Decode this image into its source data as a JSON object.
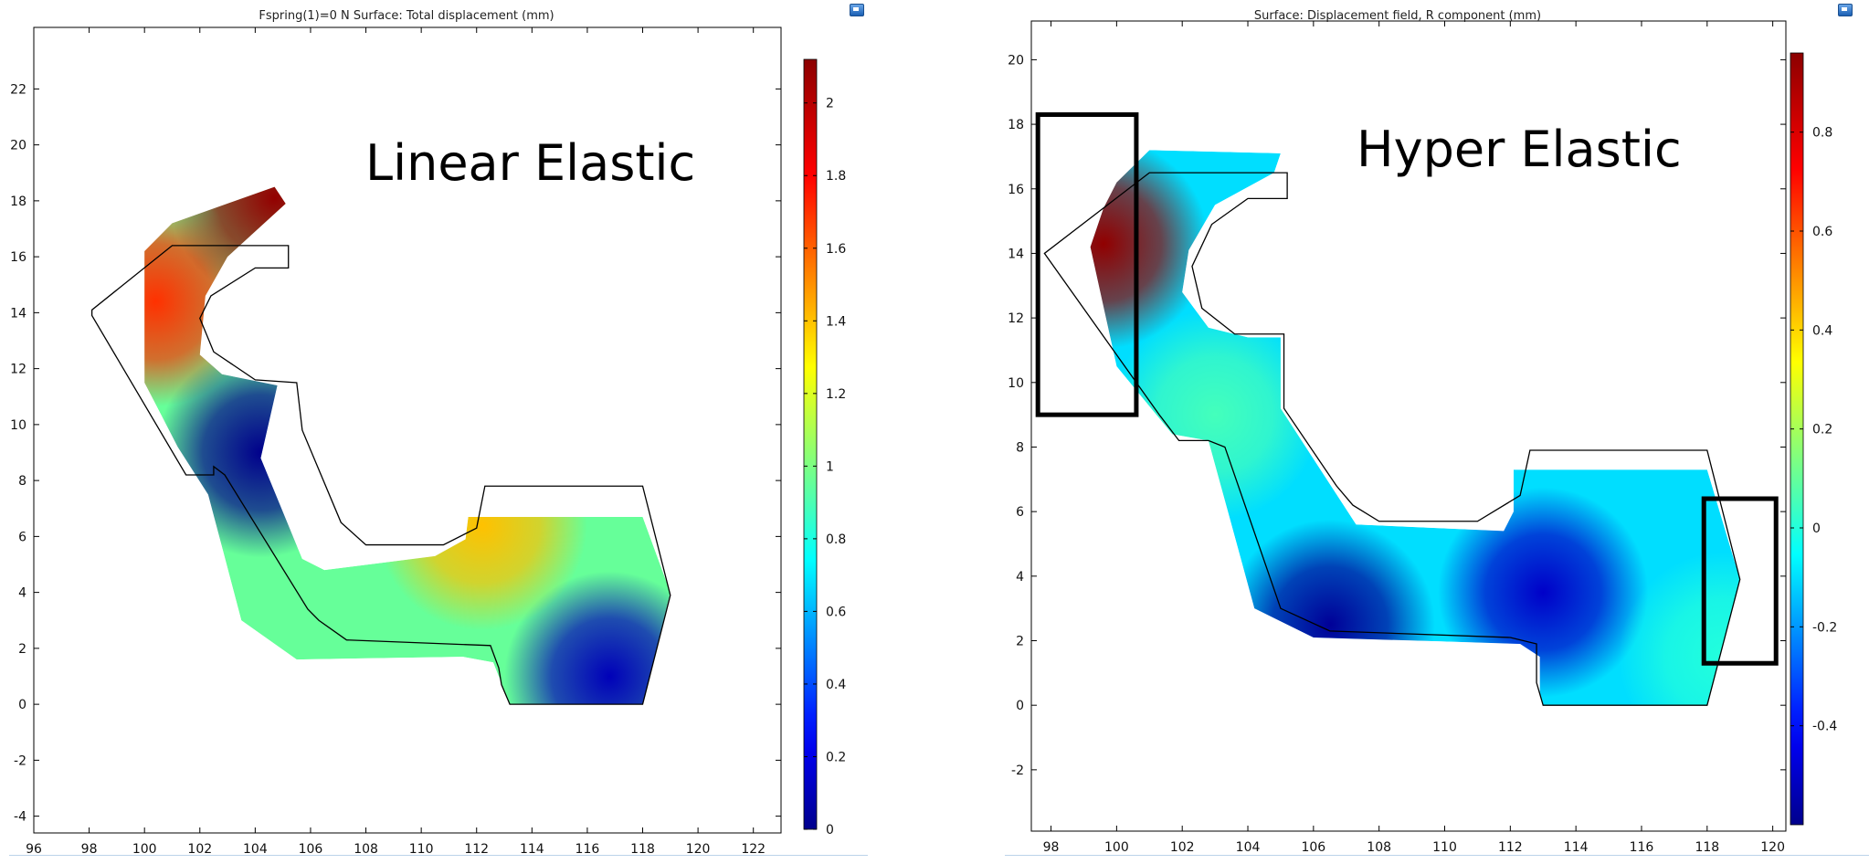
{
  "chart_data": [
    {
      "type": "heatmap",
      "title": "Fspring(1)=0 N   Surface: Total displacement (mm)",
      "annotation": "Linear Elastic",
      "xlim": [
        96,
        123
      ],
      "ylim": [
        -4.6,
        24.2
      ],
      "xticks": [
        "96",
        "98",
        "100",
        "102",
        "104",
        "106",
        "108",
        "110",
        "112",
        "114",
        "116",
        "118",
        "120",
        "122"
      ],
      "yticks": [
        "-4",
        "-2",
        "0",
        "2",
        "4",
        "6",
        "8",
        "10",
        "12",
        "14",
        "16",
        "18",
        "20",
        "22"
      ],
      "colorbar": {
        "range": [
          0,
          2.12
        ],
        "ticks": [
          "0",
          "0.2",
          "0.4",
          "0.6",
          "0.8",
          "1",
          "1.2",
          "1.4",
          "1.6",
          "1.8",
          "2"
        ],
        "colormap": "rainbow"
      },
      "hotspots": [
        {
          "x": 100.4,
          "y": 14.4,
          "value": 1.7
        },
        {
          "x": 104.7,
          "y": 18.1,
          "value": 2.1
        },
        {
          "x": 104.2,
          "y": 9.0,
          "value": 0.0
        },
        {
          "x": 116.8,
          "y": 1.0,
          "value": 0.1
        },
        {
          "x": 112.2,
          "y": 6.4,
          "value": 1.4
        }
      ],
      "deformed_outline": [
        [
          100,
          16.2
        ],
        [
          101,
          17.2
        ],
        [
          104.7,
          18.5
        ],
        [
          105.1,
          17.9
        ],
        [
          103,
          16
        ],
        [
          102.2,
          14.6
        ],
        [
          102,
          12.5
        ],
        [
          102.8,
          11.8
        ],
        [
          104.8,
          11.4
        ],
        [
          104.2,
          8.8
        ],
        [
          105.7,
          5.2
        ],
        [
          106.5,
          4.8
        ],
        [
          110.5,
          5.3
        ],
        [
          111.6,
          5.9
        ],
        [
          111.7,
          6.7
        ],
        [
          118,
          6.7
        ],
        [
          119,
          4
        ],
        [
          118,
          0
        ],
        [
          113.2,
          0
        ],
        [
          112.6,
          1.5
        ],
        [
          111.5,
          1.7
        ],
        [
          105.5,
          1.6
        ],
        [
          103.5,
          3
        ],
        [
          102.3,
          7.5
        ],
        [
          101.2,
          9.2
        ],
        [
          100,
          11.5
        ]
      ],
      "undeformed_outline": [
        [
          101,
          16.4
        ],
        [
          105.2,
          16.4
        ],
        [
          105.2,
          15.6
        ],
        [
          104,
          15.6
        ],
        [
          102.4,
          14.6
        ],
        [
          102,
          13.8
        ],
        [
          102.5,
          12.6
        ],
        [
          104,
          11.6
        ],
        [
          105.5,
          11.5
        ],
        [
          105.7,
          9.8
        ],
        [
          107.1,
          6.5
        ],
        [
          108,
          5.7
        ],
        [
          110.8,
          5.7
        ],
        [
          112,
          6.3
        ],
        [
          112.3,
          7.8
        ],
        [
          118,
          7.8
        ],
        [
          119,
          3.9
        ],
        [
          118,
          0
        ],
        [
          113.2,
          0
        ],
        [
          112.9,
          0.7
        ],
        [
          112.8,
          1.3
        ],
        [
          112.5,
          2.1
        ],
        [
          107.3,
          2.3
        ],
        [
          106.3,
          3
        ],
        [
          105.9,
          3.4
        ],
        [
          102.9,
          8.2
        ],
        [
          102.5,
          8.5
        ],
        [
          102.5,
          8.2
        ],
        [
          101.5,
          8.2
        ],
        [
          98.1,
          13.9
        ],
        [
          98.1,
          14.1
        ]
      ]
    },
    {
      "type": "heatmap",
      "title": "Surface: Displacement field, R component (mm)",
      "annotation": "Hyper Elastic",
      "xlim": [
        97.4,
        120.4
      ],
      "ylim": [
        -3.9,
        21.2
      ],
      "xticks": [
        "98",
        "100",
        "102",
        "104",
        "106",
        "108",
        "110",
        "112",
        "114",
        "116",
        "118",
        "120"
      ],
      "yticks": [
        "-2",
        "0",
        "2",
        "4",
        "6",
        "8",
        "10",
        "12",
        "14",
        "16",
        "18",
        "20"
      ],
      "colorbar": {
        "range": [
          -0.6,
          0.96
        ],
        "ticks": [
          "-0.4",
          "-0.2",
          "0",
          "0.2",
          "0.4",
          "0.6",
          "0.8"
        ],
        "colormap": "rainbow"
      },
      "hotspots": [
        {
          "x": 99.6,
          "y": 14.3,
          "value": 0.95
        },
        {
          "x": 106.5,
          "y": 2.5,
          "value": -0.58
        },
        {
          "x": 113,
          "y": 3.5,
          "value": -0.5
        },
        {
          "x": 103,
          "y": 9,
          "value": 0.05
        },
        {
          "x": 118.5,
          "y": 1.5,
          "value": 0.0
        }
      ],
      "deformed_outline": [
        [
          100,
          16.2
        ],
        [
          101,
          17.2
        ],
        [
          105,
          17.1
        ],
        [
          104.8,
          16.5
        ],
        [
          103,
          15.5
        ],
        [
          102.2,
          14.1
        ],
        [
          102,
          12.8
        ],
        [
          102.8,
          11.7
        ],
        [
          104,
          11.4
        ],
        [
          105,
          11.4
        ],
        [
          105,
          9.2
        ],
        [
          107.3,
          5.6
        ],
        [
          111.8,
          5.4
        ],
        [
          112.1,
          6.0
        ],
        [
          112.1,
          7.3
        ],
        [
          118,
          7.3
        ],
        [
          119,
          3.9
        ],
        [
          118,
          0
        ],
        [
          113,
          0
        ],
        [
          112.9,
          0.3
        ],
        [
          112.9,
          1.5
        ],
        [
          112.3,
          1.9
        ],
        [
          106,
          2.1
        ],
        [
          104.2,
          3
        ],
        [
          102.8,
          8.2
        ],
        [
          101.7,
          8.4
        ],
        [
          100,
          10.5
        ],
        [
          99.2,
          14.2
        ],
        [
          99.6,
          15.4
        ]
      ],
      "undeformed_outline": [
        [
          101,
          16.5
        ],
        [
          105.2,
          16.5
        ],
        [
          105.2,
          15.7
        ],
        [
          104,
          15.7
        ],
        [
          102.9,
          14.9
        ],
        [
          102.3,
          13.6
        ],
        [
          102.6,
          12.3
        ],
        [
          103.6,
          11.5
        ],
        [
          105.1,
          11.5
        ],
        [
          105.1,
          9.2
        ],
        [
          106.7,
          6.8
        ],
        [
          107.2,
          6.2
        ],
        [
          108,
          5.7
        ],
        [
          111,
          5.7
        ],
        [
          112.3,
          6.5
        ],
        [
          112.6,
          7.9
        ],
        [
          118,
          7.9
        ],
        [
          119,
          3.9
        ],
        [
          118,
          0
        ],
        [
          113,
          0
        ],
        [
          112.8,
          0.7
        ],
        [
          112.8,
          1.9
        ],
        [
          112,
          2.1
        ],
        [
          106.5,
          2.3
        ],
        [
          105,
          3
        ],
        [
          103.3,
          8
        ],
        [
          102.8,
          8.2
        ],
        [
          101.9,
          8.2
        ],
        [
          101.3,
          9
        ],
        [
          97.8,
          14
        ]
      ],
      "highlight_boxes": [
        {
          "x0": 97.6,
          "y0": 9.0,
          "x1": 100.6,
          "y1": 18.3
        },
        {
          "x0": 117.9,
          "y0": 1.3,
          "x1": 120.1,
          "y1": 6.4
        }
      ]
    }
  ]
}
